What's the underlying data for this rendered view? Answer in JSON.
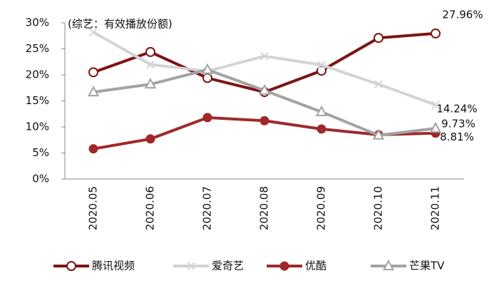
{
  "chart_data": {
    "type": "line",
    "annotation": "(综艺：有效播放份额)",
    "categories": [
      "2020.05",
      "2020.06",
      "2020.07",
      "2020.08",
      "2020.09",
      "2020.10",
      "2020.11"
    ],
    "series": [
      {
        "name": "腾讯视频",
        "color": "#7b1416",
        "marker": "circle-open",
        "values": [
          20.5,
          24.4,
          19.4,
          16.7,
          20.8,
          27.1,
          27.96
        ],
        "value_labels": [
          null,
          null,
          null,
          null,
          null,
          null,
          "27.96%"
        ]
      },
      {
        "name": "爱奇艺",
        "color": "#d4d4d4",
        "marker": "x",
        "values": [
          28.2,
          22.0,
          20.7,
          23.6,
          21.9,
          18.2,
          14.24
        ],
        "value_labels": [
          null,
          null,
          null,
          null,
          null,
          null,
          "14.24%"
        ]
      },
      {
        "name": "优酷",
        "color": "#a0282a",
        "marker": "circle",
        "values": [
          5.8,
          7.7,
          11.8,
          11.2,
          9.6,
          8.5,
          8.81
        ],
        "value_labels": [
          null,
          null,
          null,
          null,
          null,
          null,
          "8.81%"
        ]
      },
      {
        "name": "芒果TV",
        "color": "#a3a3a3",
        "marker": "triangle-open",
        "values": [
          16.7,
          18.2,
          21.0,
          17.0,
          12.9,
          8.4,
          9.73
        ],
        "value_labels": [
          null,
          null,
          null,
          null,
          null,
          null,
          "9.73%"
        ]
      }
    ],
    "ylim": [
      0,
      30
    ],
    "yticks": [
      {
        "value": 0,
        "label": "0%"
      },
      {
        "value": 5,
        "label": "5%"
      },
      {
        "value": 10,
        "label": "10%"
      },
      {
        "value": 15,
        "label": "15%"
      },
      {
        "value": 20,
        "label": "20%"
      },
      {
        "value": 25,
        "label": "25%"
      },
      {
        "value": 30,
        "label": "30%"
      }
    ],
    "grid": false,
    "legend": "bottom"
  }
}
